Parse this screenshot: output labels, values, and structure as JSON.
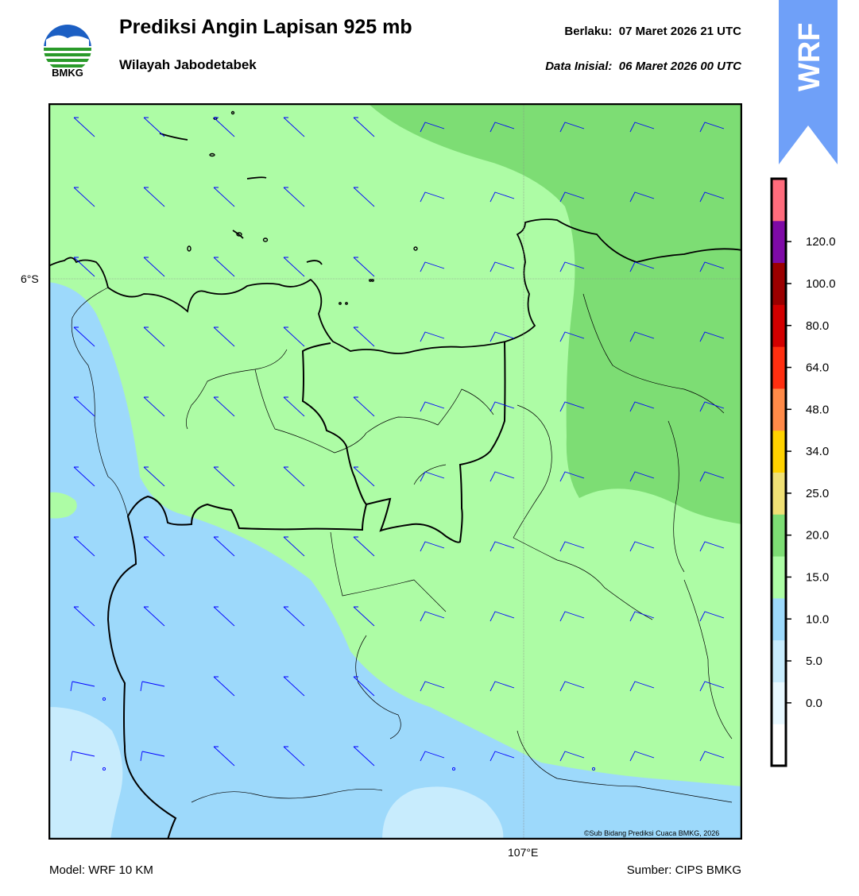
{
  "header": {
    "title": "Prediksi Angin Lapisan 925 mb",
    "subtitle": "Wilayah Jabodetabek",
    "valid_label": "Berlaku:",
    "valid_time": "07 Maret 2026 21 UTC",
    "init_label": "Data Inisial:",
    "init_time": "06 Maret 2026 00 UTC"
  },
  "logo": {
    "text": "BMKG",
    "icon": "bmkg-logo"
  },
  "ribbon": {
    "text": "WRF",
    "color": "#6fa0f8"
  },
  "map": {
    "lat_label": "6°S",
    "lon_label": "107°E",
    "copyright": "©Sub Bidang Prediksi Cuaca BMKG, 2026"
  },
  "footer": {
    "model": "Model: WRF 10 KM",
    "source": "Sumber: CIPS BMKG"
  },
  "legend": {
    "ticks": [
      "0.0",
      "5.0",
      "10.0",
      "15.0",
      "20.0",
      "25.0",
      "34.0",
      "48.0",
      "64.0",
      "80.0",
      "100.0",
      "120.0"
    ],
    "colors": [
      "#ffffff",
      "#e8f8ff",
      "#c8ecfd",
      "#9dd9fb",
      "#adfca5",
      "#7ddd74",
      "#f0e075",
      "#ffd200",
      "#ff8a48",
      "#ff2f10",
      "#d30000",
      "#9b0000",
      "#7e0aa6",
      "#ff6c7c"
    ]
  }
}
